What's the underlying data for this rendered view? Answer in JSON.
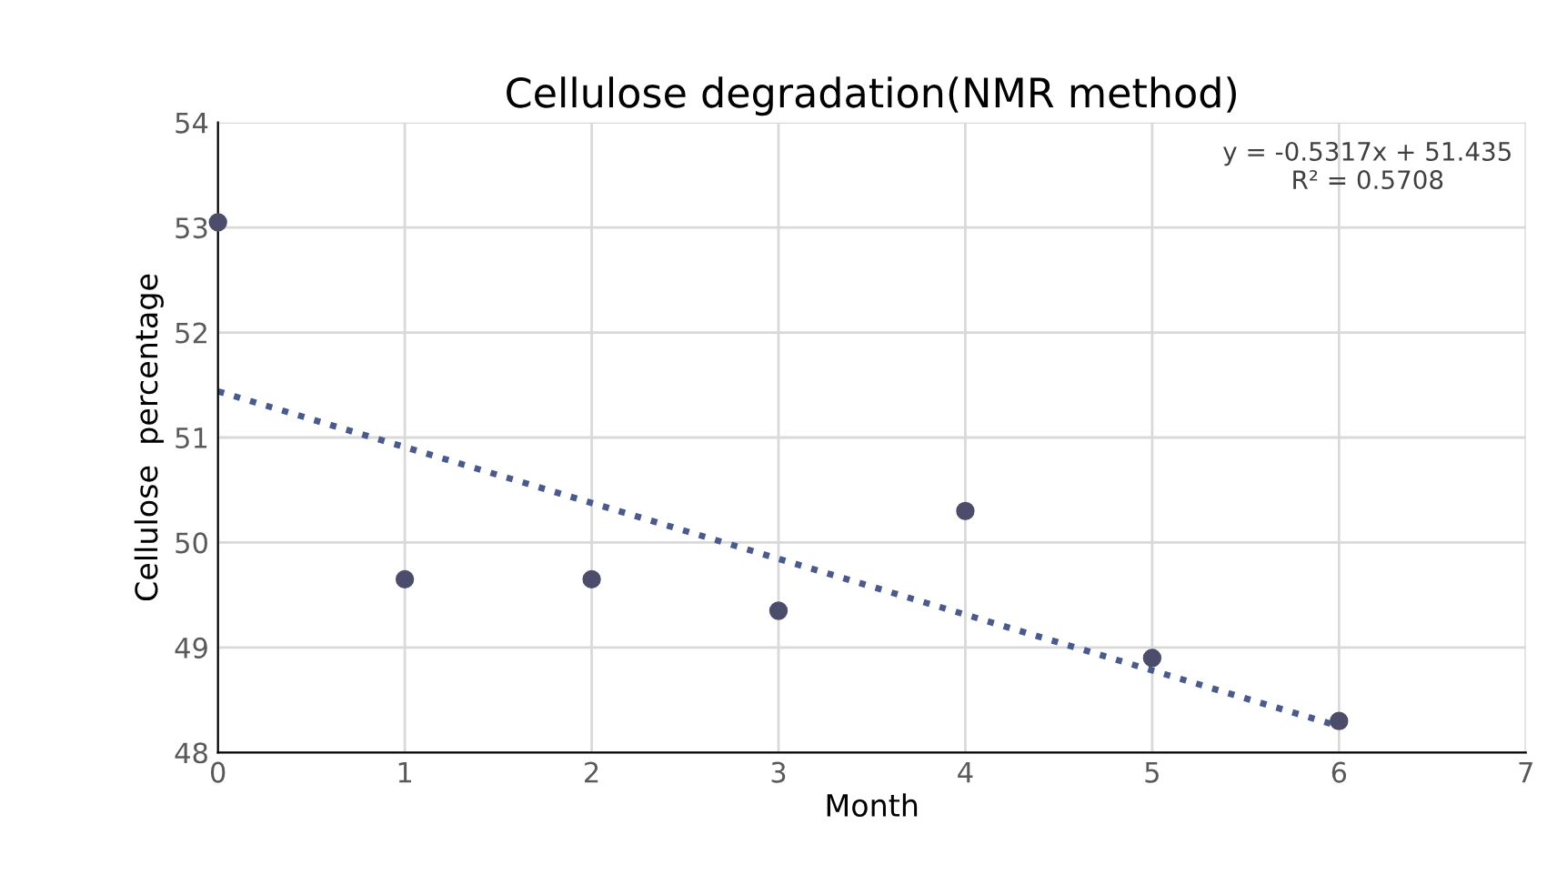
{
  "chart_data": {
    "type": "scatter",
    "title": "Cellulose degradation(NMR method)",
    "xlabel": "Month",
    "ylabel": "Cellulose  percentage",
    "series": [
      {
        "color": "#4b4d6b",
        "x": [
          0,
          1,
          2,
          3,
          4,
          5,
          6
        ],
        "values": [
          53.05,
          49.65,
          49.65,
          49.35,
          50.3,
          48.9,
          48.3
        ],
        "marker": "circle"
      },
      {
        "type": "line",
        "color": "#4a5a8c",
        "x": [
          0,
          6
        ],
        "values": [
          51.44,
          48.25
        ],
        "line_style": "dotted",
        "marker": "none"
      }
    ],
    "xlim": [
      0,
      7
    ],
    "xticks": [
      0,
      1,
      2,
      3,
      4,
      5,
      6,
      7
    ],
    "ylim": [
      48,
      54
    ],
    "yticks": [
      48,
      49,
      50,
      51,
      52,
      53,
      54
    ],
    "grid": true,
    "legend": false,
    "annotations": [
      "y = -0.5317x + 51.435\nR² = 0.5708"
    ]
  }
}
